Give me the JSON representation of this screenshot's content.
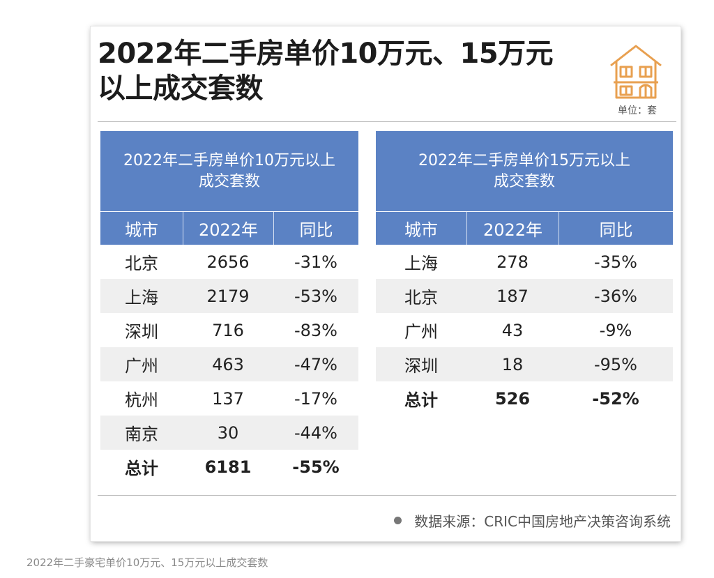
{
  "title_line1": "2022年二手房单价10万元、15万元",
  "title_line2": "以上成交套数",
  "unit": "单位：套",
  "icon": "house-icon",
  "colors": {
    "header_blue": "#5b82c4",
    "icon_orange": "#e8a050",
    "alt_row": "#efefef"
  },
  "tables": [
    {
      "title_line1": "2022年二手房单价10万元以上",
      "title_line2": "成交套数",
      "columns": [
        "城市",
        "2022年",
        "同比"
      ],
      "rows": [
        [
          "北京",
          "2656",
          "-31%"
        ],
        [
          "上海",
          "2179",
          "-53%"
        ],
        [
          "深圳",
          "716",
          "-83%"
        ],
        [
          "广州",
          "463",
          "-47%"
        ],
        [
          "杭州",
          "137",
          "-17%"
        ],
        [
          "南京",
          "30",
          "-44%"
        ],
        [
          "总计",
          "6181",
          "-55%"
        ]
      ]
    },
    {
      "title_line1": "2022年二手房单价15万元以上",
      "title_line2": "成交套数",
      "columns": [
        "城市",
        "2022年",
        "同比"
      ],
      "rows": [
        [
          "上海",
          "278",
          "-35%"
        ],
        [
          "北京",
          "187",
          "-36%"
        ],
        [
          "广州",
          "43",
          "-9%"
        ],
        [
          "深圳",
          "18",
          "-95%"
        ],
        [
          "总计",
          "526",
          "-52%"
        ]
      ]
    }
  ],
  "source": "数据来源：CRIC中国房地产决策咨询系统",
  "caption": "2022年二手豪宅单价10万元、15万元以上成交套数"
}
